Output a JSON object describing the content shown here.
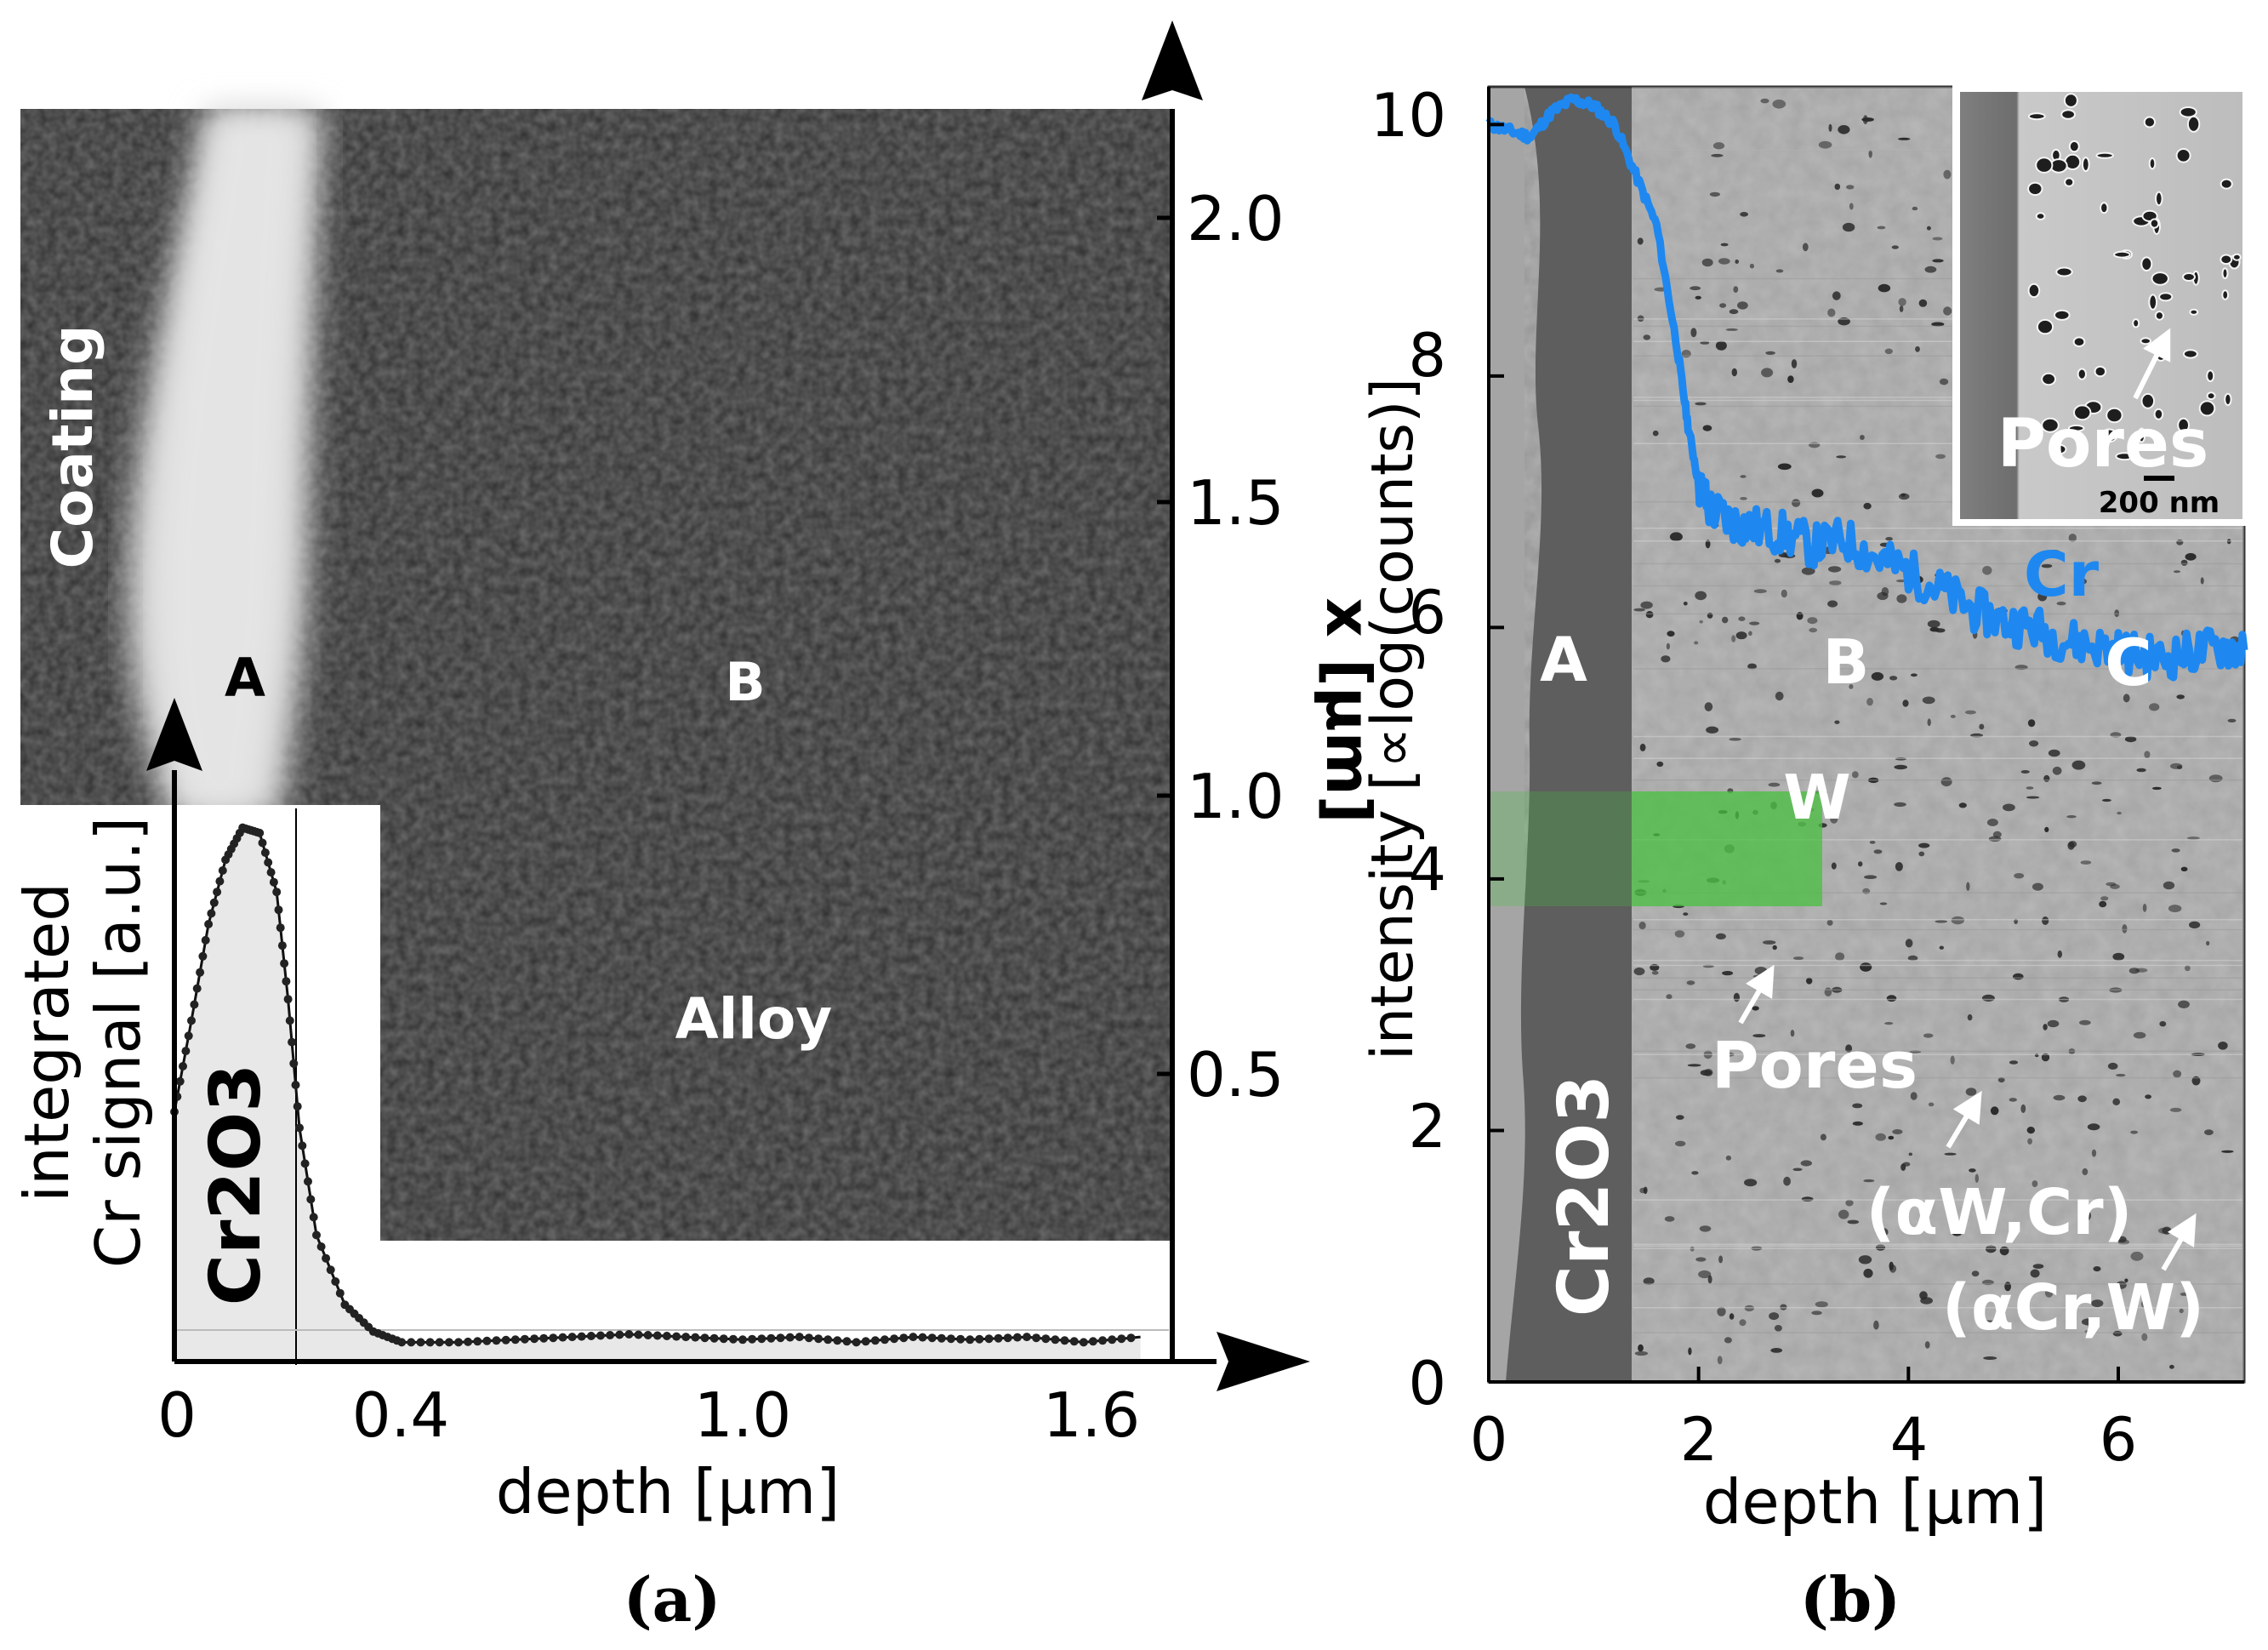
{
  "panel_a": {
    "caption": "(a)",
    "labels": {
      "coating": "Coating",
      "region_a": "A",
      "region_b": "B",
      "alloy": "Alloy",
      "oxide": "Cr2O3"
    },
    "right_axis": {
      "label": "x [µm]",
      "ticks": [
        "2.0",
        "1.5",
        "1.0",
        "0.5"
      ]
    },
    "inset": {
      "ylabel_line1": "integrated",
      "ylabel_line2": "Cr signal [a.u.]",
      "xlabel": "depth [µm]",
      "xticks": [
        "0",
        "0.4",
        "1.0",
        "1.6"
      ]
    }
  },
  "panel_b": {
    "caption": "(b)",
    "ylabel": "intensity [∝log(counts)]",
    "xlabel": "depth [µm]",
    "xticks": [
      "0",
      "2",
      "4",
      "6"
    ],
    "yticks": [
      "10",
      "8",
      "6",
      "4",
      "2",
      "0"
    ],
    "labels": {
      "region_a": "A",
      "region_b": "B",
      "region_c": "C",
      "oxide": "Cr2O3",
      "w_marker": "W",
      "cr_curve": "Cr",
      "pores": "Pores",
      "phase_1": "(αW,Cr)",
      "phase_2": "(αCr,W)"
    },
    "inset": {
      "label": "Pores",
      "scalebar": "200 nm"
    },
    "colors": {
      "cr_curve": "#1e88f0",
      "w_band": "#49c040"
    }
  },
  "chart_data": [
    {
      "type": "line",
      "panel": "a",
      "xlabel": "depth [µm]",
      "ylabel": "integrated Cr signal [a.u.]",
      "xlim": [
        0,
        1.75
      ],
      "x": [
        0,
        0.03,
        0.06,
        0.09,
        0.12,
        0.15,
        0.18,
        0.2,
        0.22,
        0.25,
        0.3,
        0.35,
        0.4,
        0.5,
        0.6,
        0.7,
        0.8,
        0.9,
        1.0,
        1.1,
        1.2,
        1.3,
        1.4,
        1.5,
        1.6,
        1.7
      ],
      "series": [
        {
          "values": [
            0.45,
            0.62,
            0.8,
            0.92,
            0.98,
            0.97,
            0.86,
            0.66,
            0.42,
            0.22,
            0.09,
            0.04,
            0.02,
            0.02,
            0.025,
            0.03,
            0.035,
            0.03,
            0.025,
            0.03,
            0.02,
            0.03,
            0.025,
            0.03,
            0.02,
            0.03
          ]
        }
      ]
    },
    {
      "type": "line",
      "panel": "b",
      "xlabel": "depth [µm]",
      "ylabel": "intensity [∝log(counts)]",
      "xlim": [
        0,
        7.2
      ],
      "ylim": [
        0,
        10.3
      ],
      "x": [
        0,
        0.2,
        0.4,
        0.6,
        0.8,
        1.0,
        1.2,
        1.4,
        1.6,
        1.8,
        1.9,
        2.0,
        2.1,
        2.3,
        2.5,
        2.8,
        3.1,
        3.4,
        3.7,
        4.0,
        4.3,
        4.6,
        4.9,
        5.2,
        5.5,
        5.8,
        6.1,
        6.4,
        6.7,
        7.0,
        7.2
      ],
      "series": [
        {
          "name": "Cr",
          "values": [
            10.0,
            9.95,
            9.9,
            10.1,
            10.2,
            10.15,
            10.0,
            9.6,
            9.2,
            8.2,
            7.6,
            7.15,
            6.95,
            6.85,
            6.8,
            6.75,
            6.65,
            6.7,
            6.55,
            6.45,
            6.3,
            6.15,
            6.05,
            6.0,
            5.9,
            5.85,
            5.8,
            5.75,
            5.8,
            5.85,
            5.82
          ]
        }
      ]
    }
  ]
}
